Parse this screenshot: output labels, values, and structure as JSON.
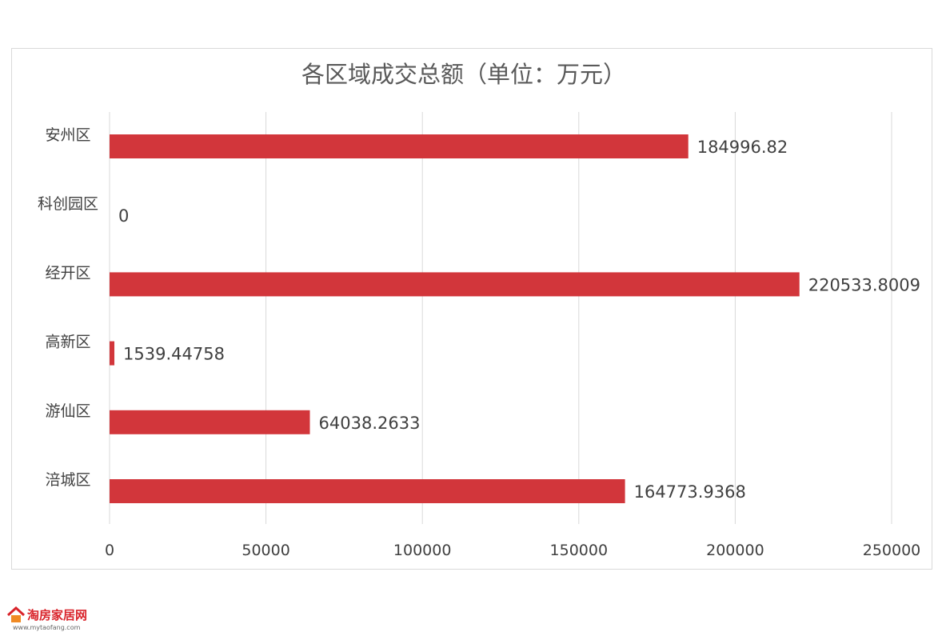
{
  "chart_data": {
    "type": "bar",
    "orientation": "horizontal",
    "title": "各区域成交总额（单位：万元）",
    "categories": [
      "安州区",
      "科创园区",
      "经开区",
      "高新区",
      "游仙区",
      "涪城区"
    ],
    "values": [
      184996.82,
      0,
      220533.8009,
      1539.44758,
      64038.2633,
      164773.9368
    ],
    "value_labels": [
      "184996.82",
      "0",
      "220533.8009",
      "1539.44758",
      "64038.2633",
      "164773.9368"
    ],
    "xlim": [
      0,
      250000
    ],
    "xticks": [
      0,
      50000,
      100000,
      150000,
      200000,
      250000
    ],
    "xtick_labels": [
      "0",
      "50000",
      "100000",
      "150000",
      "200000",
      "250000"
    ],
    "grid": true,
    "bar_color": "#d2363b",
    "grid_color": "#d9d9d9",
    "legend": "none"
  },
  "watermark": {
    "logo_text": "淘房家居网",
    "logo_url": "www.mytaofang.com"
  }
}
